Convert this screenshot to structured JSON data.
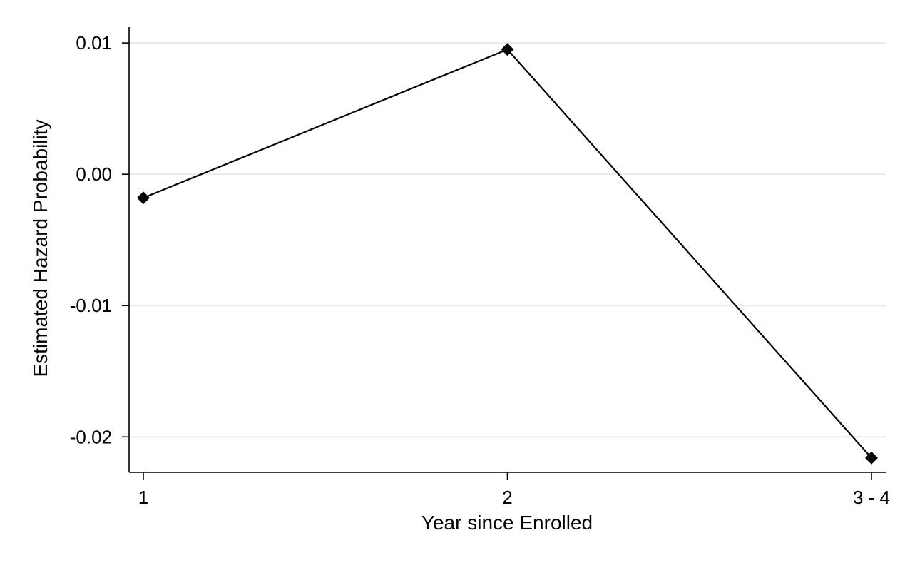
{
  "chart_data": {
    "type": "line",
    "title": "",
    "xlabel": "Year since Enrolled",
    "ylabel": "Estimated Hazard Probability",
    "categories": [
      "1",
      "2",
      "3 - 4"
    ],
    "series": [
      {
        "values": [
          -0.0018,
          0.0095,
          -0.0216
        ],
        "marker": "diamond",
        "color": "#000000"
      }
    ],
    "ylim": [
      -0.0227,
      0.0112
    ],
    "yticks": [
      0.01,
      0.0,
      -0.01,
      -0.02
    ],
    "ytick_labels": [
      "0.01",
      "0.00",
      "-0.01",
      "-0.02"
    ],
    "grid": true,
    "grid_axis": "y",
    "grid_color": "#e6ebee",
    "legend": "none"
  }
}
